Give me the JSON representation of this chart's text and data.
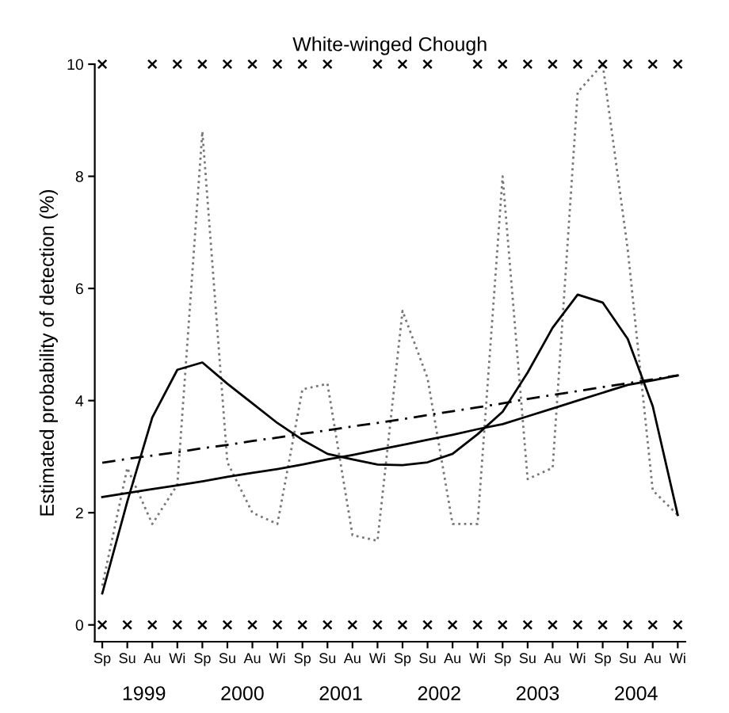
{
  "chart_data": {
    "type": "line",
    "title": "White-winged Chough",
    "ylabel": "Estimated probability of detection (%)",
    "categories": [
      "Sp",
      "Su",
      "Au",
      "Wi",
      "Sp",
      "Su",
      "Au",
      "Wi",
      "Sp",
      "Su",
      "Au",
      "Wi",
      "Sp",
      "Su",
      "Au",
      "Wi",
      "Sp",
      "Su",
      "Au",
      "Wi",
      "Sp",
      "Su",
      "Au",
      "Wi"
    ],
    "ylim": [
      -0.3,
      10
    ],
    "yticks": [
      0,
      2,
      4,
      6,
      8,
      10
    ],
    "series": [
      {
        "type": "line",
        "line_style": "dotted",
        "color": "#777777",
        "values": [
          0.7,
          2.8,
          1.8,
          2.5,
          8.8,
          2.9,
          2.0,
          1.8,
          4.2,
          4.3,
          1.6,
          1.5,
          5.6,
          4.4,
          1.8,
          1.8,
          8.0,
          2.6,
          2.8,
          9.5,
          10,
          6.7,
          2.4,
          1.96
        ]
      },
      {
        "type": "line",
        "line_style": "solid",
        "color": "#000000",
        "values": [
          0.56,
          2.2,
          3.7,
          4.55,
          4.68,
          4.3,
          3.95,
          3.6,
          3.3,
          3.05,
          2.95,
          2.86,
          2.85,
          2.9,
          3.05,
          3.4,
          3.8,
          4.5,
          5.3,
          5.89,
          5.75,
          5.1,
          3.9,
          1.96
        ]
      },
      {
        "type": "line",
        "line_style": "solid",
        "color": "#000000",
        "values": [
          2.28,
          2.35,
          2.42,
          2.49,
          2.56,
          2.64,
          2.71,
          2.78,
          2.86,
          2.95,
          3.03,
          3.12,
          3.21,
          3.3,
          3.39,
          3.49,
          3.58,
          3.72,
          3.86,
          4.0,
          4.14,
          4.28,
          4.36,
          4.45
        ]
      },
      {
        "type": "line",
        "line_style": "dashed",
        "color": "#000000",
        "values": [
          2.89,
          2.96,
          3.02,
          3.08,
          3.15,
          3.21,
          3.28,
          3.34,
          3.41,
          3.47,
          3.54,
          3.6,
          3.67,
          3.74,
          3.81,
          3.88,
          3.95,
          4.03,
          4.1,
          4.17,
          4.24,
          4.31,
          4.38,
          4.45
        ]
      },
      {
        "type": "scatter",
        "marker": "cross",
        "color": "#000000",
        "values": [
          10,
          null,
          10,
          10,
          10,
          10,
          10,
          10,
          10,
          10,
          null,
          10,
          10,
          10,
          null,
          10,
          10,
          10,
          10,
          10,
          10,
          10,
          10,
          10
        ]
      },
      {
        "type": "scatter",
        "marker": "cross",
        "color": "#000000",
        "values": [
          0,
          0,
          0,
          0,
          0,
          0,
          0,
          0,
          0,
          0,
          0,
          0,
          0,
          0,
          0,
          0,
          0,
          0,
          0,
          0,
          0,
          0,
          0,
          0
        ]
      }
    ],
    "annotations": [
      "1999",
      "2000",
      "2001",
      "2002",
      "2003",
      "2004"
    ]
  }
}
